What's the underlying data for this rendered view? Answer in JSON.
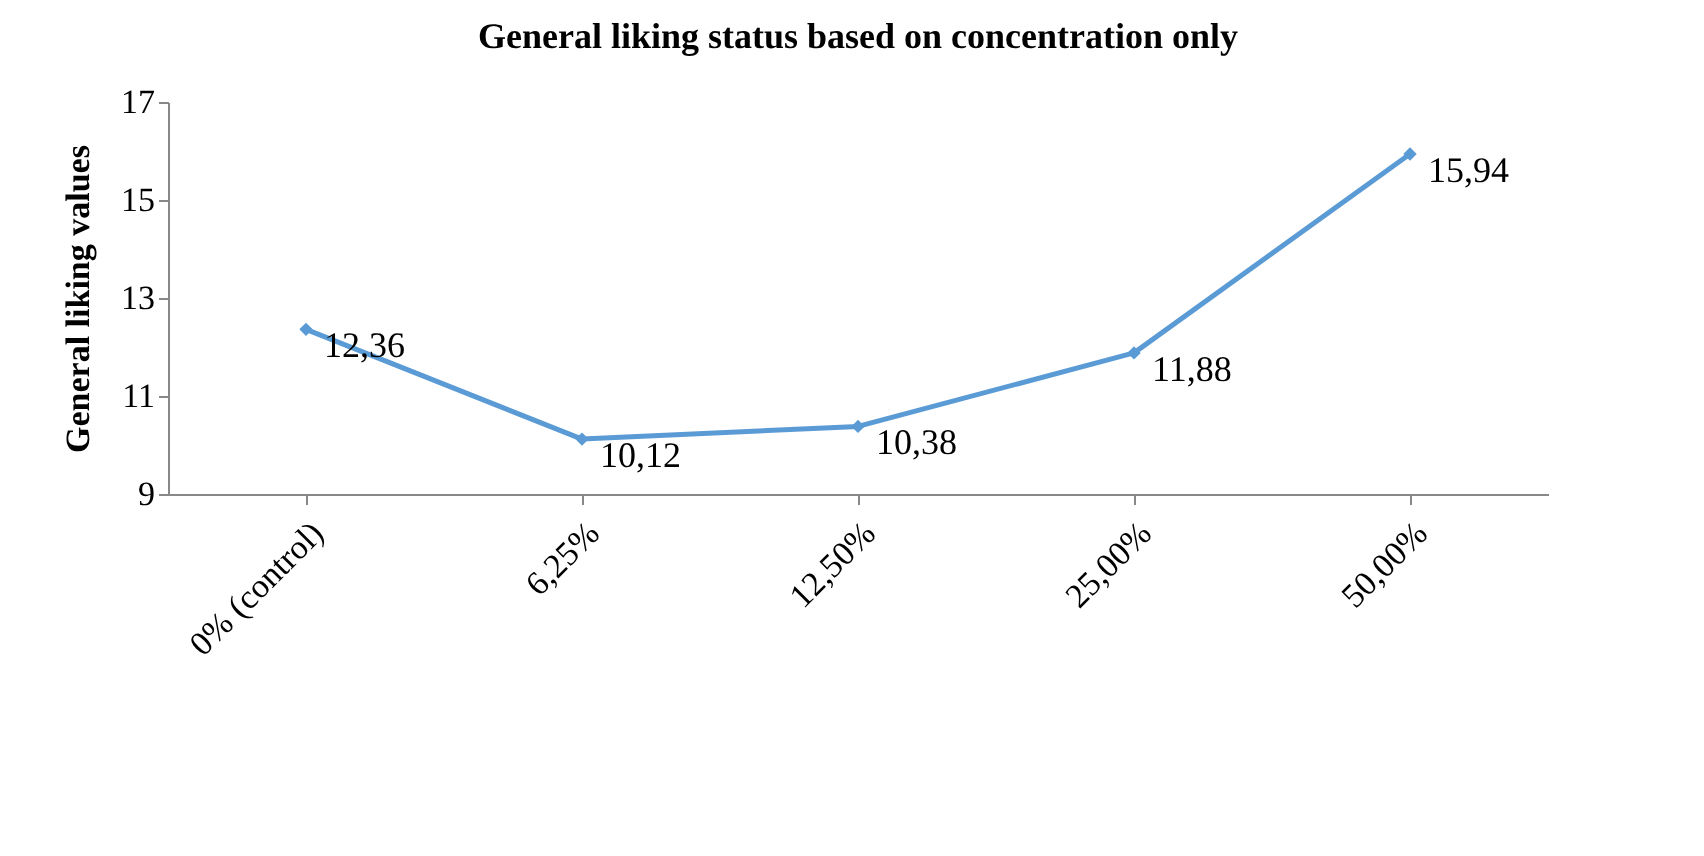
{
  "chart_data": {
    "type": "line",
    "title": "General liking status based on concentration only",
    "ylabel": "General liking values",
    "categories": [
      "0% (control)",
      "6,25%",
      "12,50%",
      "25,00%",
      "50,00%"
    ],
    "series": [
      {
        "color": "#5b9bd5",
        "values": [
          12.36,
          10.12,
          10.38,
          11.88,
          15.94
        ],
        "value_labels": [
          "12,36",
          "10,12",
          "10,38",
          "11,88",
          "15,94"
        ]
      }
    ],
    "ylim": [
      9,
      17
    ],
    "yticks": [
      9,
      11,
      13,
      15,
      17
    ],
    "grid": false,
    "marker": "diamond"
  }
}
